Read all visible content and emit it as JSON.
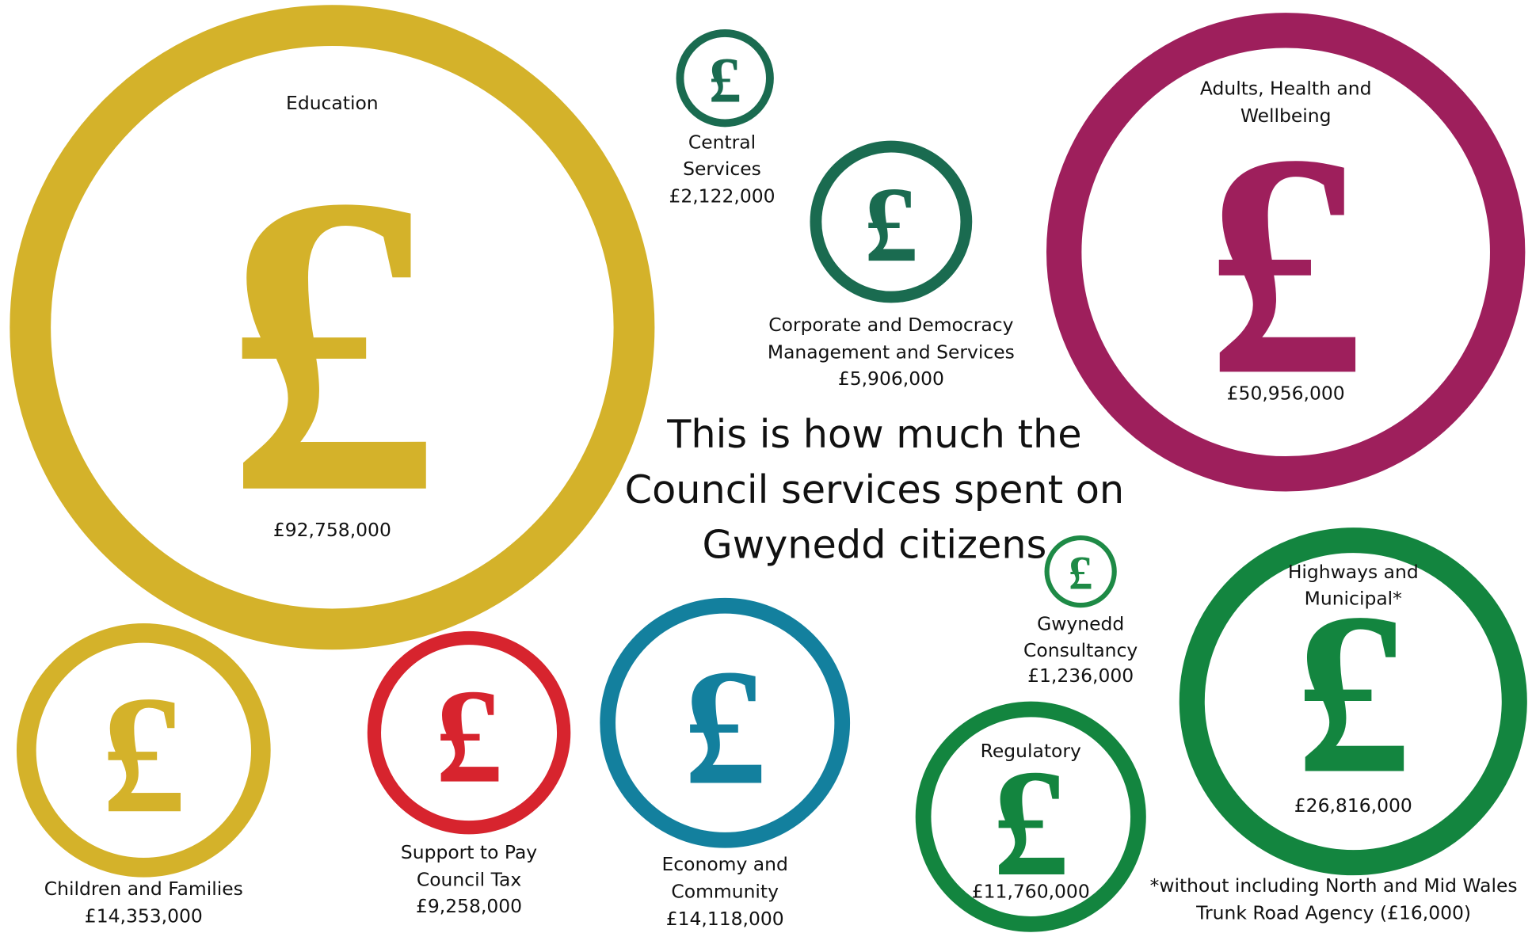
{
  "title_lines": [
    "This is how much the",
    "Council services spent on",
    "Gwynedd citizens"
  ],
  "symbol": "£",
  "items": [
    {
      "name_lines": [
        "Education"
      ],
      "amount": "£92,758,000"
    },
    {
      "name_lines": [
        "Central",
        "Services"
      ],
      "amount": "£2,122,000"
    },
    {
      "name_lines": [
        "Corporate and Democracy",
        "Management and Services"
      ],
      "amount": "£5,906,000"
    },
    {
      "name_lines": [
        "Adults, Health and",
        "Wellbeing"
      ],
      "amount": "£50,956,000"
    },
    {
      "name_lines": [
        "Children and Families"
      ],
      "amount": "£14,353,000"
    },
    {
      "name_lines": [
        "Support to Pay",
        "Council Tax"
      ],
      "amount": "£9,258,000"
    },
    {
      "name_lines": [
        "Economy and",
        "Community"
      ],
      "amount": "£14,118,000"
    },
    {
      "name_lines": [
        "Gwynedd",
        "Consultancy"
      ],
      "amount": "£1,236,000"
    },
    {
      "name_lines": [
        "Regulatory"
      ],
      "amount": "£11,760,000"
    },
    {
      "name_lines": [
        "Highways and",
        "Municipal*"
      ],
      "amount": "£26,816,000"
    }
  ],
  "footnote_lines": [
    "*without including North and Mid Wales",
    "Trunk Road Agency (£16,000)"
  ]
}
